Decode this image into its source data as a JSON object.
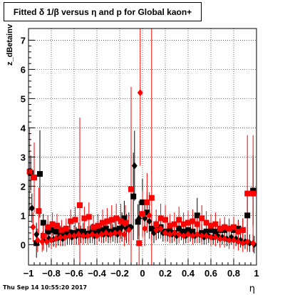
{
  "title": "Fitted δ 1/β versus η and p for Global kaon+",
  "footer_date": "Thu Sep 14 10:55:20 2017",
  "chart_data": {
    "type": "scatter",
    "title": "Fitted δ 1/β versus η and p for Global kaon+",
    "xlabel": "η",
    "ylabel": "z_dBetainv",
    "xlim": [
      -1,
      1
    ],
    "ylim": [
      -0.7,
      7.4
    ],
    "xticks": [
      -1,
      -0.8,
      -0.6,
      -0.4,
      -0.2,
      0,
      0.2,
      0.4,
      0.6,
      0.8,
      1
    ],
    "xtick_labels": [
      "−1",
      "−0.8",
      "−0.6",
      "−0.4",
      "−0.2",
      "0",
      "0.2",
      "0.4",
      "0.6",
      "0.8",
      "1"
    ],
    "yticks": [
      0,
      1,
      2,
      3,
      4,
      5,
      6,
      7
    ],
    "ytick_labels": [
      "0",
      "1",
      "2",
      "3",
      "4",
      "5",
      "6",
      "7"
    ],
    "grid": true,
    "colors": {
      "black": "#000000",
      "red": "#ff0000"
    },
    "series": [
      {
        "marker": "square",
        "color": "#000000",
        "points": [
          [
            -0.98,
            2.45,
            0.6
          ],
          [
            -0.93,
            0.05,
            0.5
          ],
          [
            -0.9,
            2.42,
            1.5
          ],
          [
            -0.87,
            0.75,
            0.3
          ],
          [
            -0.83,
            0.45,
            0.3
          ],
          [
            -0.8,
            0.5,
            0.25
          ],
          [
            -0.76,
            0.45,
            0.3
          ],
          [
            -0.72,
            0.4,
            0.25
          ],
          [
            -0.68,
            0.38,
            0.25
          ],
          [
            -0.64,
            0.42,
            0.3
          ],
          [
            -0.6,
            0.4,
            0.25
          ],
          [
            -0.56,
            0.45,
            0.3
          ],
          [
            -0.52,
            0.45,
            0.3
          ],
          [
            -0.48,
            0.38,
            0.25
          ],
          [
            -0.44,
            0.42,
            0.3
          ],
          [
            -0.4,
            0.45,
            0.3
          ],
          [
            -0.36,
            0.5,
            0.3
          ],
          [
            -0.32,
            0.55,
            0.35
          ],
          [
            -0.28,
            0.45,
            0.3
          ],
          [
            -0.24,
            0.5,
            0.35
          ],
          [
            -0.2,
            0.55,
            0.4
          ],
          [
            -0.16,
            0.9,
            0.6
          ],
          [
            -0.12,
            0.6,
            0.5
          ],
          [
            -0.08,
            1.65,
            1.5
          ],
          [
            -0.04,
            0.78,
            0.6
          ],
          [
            0.0,
            1.45,
            0.8
          ],
          [
            0.04,
            1.1,
            0.7
          ],
          [
            0.08,
            0.55,
            0.4
          ],
          [
            0.12,
            0.5,
            0.35
          ],
          [
            0.16,
            0.6,
            0.3
          ],
          [
            0.2,
            0.45,
            0.3
          ],
          [
            0.24,
            0.5,
            0.3
          ],
          [
            0.28,
            0.4,
            0.25
          ],
          [
            0.32,
            0.55,
            0.3
          ],
          [
            0.36,
            0.45,
            0.3
          ],
          [
            0.4,
            0.5,
            0.25
          ],
          [
            0.44,
            0.45,
            0.3
          ],
          [
            0.48,
            1.0,
            0.6
          ],
          [
            0.52,
            0.4,
            0.3
          ],
          [
            0.56,
            0.45,
            0.25
          ],
          [
            0.6,
            0.5,
            0.3
          ],
          [
            0.64,
            0.45,
            0.25
          ],
          [
            0.68,
            0.5,
            0.3
          ],
          [
            0.72,
            0.5,
            0.25
          ],
          [
            0.76,
            0.55,
            0.3
          ],
          [
            0.8,
            0.5,
            0.3
          ],
          [
            0.84,
            0.55,
            0.3
          ],
          [
            0.88,
            0.5,
            0.4
          ],
          [
            0.92,
            1.0,
            0.8
          ],
          [
            0.97,
            1.85,
            1.2
          ]
        ]
      },
      {
        "marker": "diamond",
        "color": "#000000",
        "points": [
          [
            -0.97,
            1.25,
            0.5
          ],
          [
            -0.93,
            0.35,
            0.4
          ],
          [
            -0.87,
            0.15,
            0.3
          ],
          [
            -0.82,
            0.2,
            0.3
          ],
          [
            -0.78,
            0.18,
            0.25
          ],
          [
            -0.74,
            0.22,
            0.25
          ],
          [
            -0.7,
            0.2,
            0.25
          ],
          [
            -0.66,
            0.3,
            0.3
          ],
          [
            -0.62,
            0.25,
            0.25
          ],
          [
            -0.58,
            0.3,
            0.3
          ],
          [
            -0.54,
            0.35,
            0.3
          ],
          [
            -0.5,
            0.3,
            0.25
          ],
          [
            -0.46,
            0.35,
            0.3
          ],
          [
            -0.42,
            0.3,
            0.3
          ],
          [
            -0.38,
            0.4,
            0.3
          ],
          [
            -0.34,
            0.35,
            0.3
          ],
          [
            -0.3,
            0.35,
            0.3
          ],
          [
            -0.26,
            0.4,
            0.3
          ],
          [
            -0.22,
            0.35,
            0.3
          ],
          [
            -0.18,
            0.6,
            0.5
          ],
          [
            -0.14,
            0.55,
            0.5
          ],
          [
            -0.1,
            0.6,
            0.5
          ],
          [
            -0.07,
            2.7,
            1.2
          ],
          [
            -0.03,
            0.9,
            0.6
          ],
          [
            0.02,
            0.9,
            0.6
          ],
          [
            0.06,
            0.8,
            0.6
          ],
          [
            0.1,
            0.4,
            0.35
          ],
          [
            0.14,
            0.5,
            0.3
          ],
          [
            0.18,
            0.4,
            0.3
          ],
          [
            0.22,
            0.4,
            0.3
          ],
          [
            0.26,
            0.35,
            0.3
          ],
          [
            0.3,
            0.3,
            0.3
          ],
          [
            0.34,
            0.4,
            0.25
          ],
          [
            0.38,
            0.3,
            0.25
          ],
          [
            0.42,
            0.4,
            0.3
          ],
          [
            0.46,
            0.3,
            0.25
          ],
          [
            0.5,
            0.35,
            0.3
          ],
          [
            0.54,
            0.25,
            0.25
          ],
          [
            0.58,
            0.3,
            0.25
          ],
          [
            0.62,
            0.25,
            0.25
          ],
          [
            0.66,
            0.3,
            0.25
          ],
          [
            0.7,
            0.25,
            0.25
          ],
          [
            0.74,
            0.2,
            0.25
          ],
          [
            0.78,
            0.25,
            0.25
          ],
          [
            0.82,
            0.2,
            0.25
          ],
          [
            0.86,
            0.15,
            0.25
          ],
          [
            0.9,
            0.1,
            0.25
          ],
          [
            0.94,
            0.05,
            0.3
          ],
          [
            0.98,
            0.0,
            0.3
          ]
        ]
      },
      {
        "marker": "square",
        "color": "#ff0000",
        "points": [
          [
            -0.99,
            2.5,
            1.5
          ],
          [
            -0.95,
            2.3,
            1.2
          ],
          [
            -0.91,
            1.15,
            0.8
          ],
          [
            -0.87,
            0.3,
            0.5
          ],
          [
            -0.83,
            0.6,
            0.4
          ],
          [
            -0.79,
            0.7,
            0.4
          ],
          [
            -0.75,
            0.65,
            0.4
          ],
          [
            -0.71,
            0.5,
            0.35
          ],
          [
            -0.67,
            0.55,
            0.35
          ],
          [
            -0.63,
            0.8,
            0.4
          ],
          [
            -0.59,
            0.85,
            0.45
          ],
          [
            -0.55,
            1.35,
            3.0
          ],
          [
            -0.51,
            0.9,
            0.4
          ],
          [
            -0.47,
            0.95,
            0.5
          ],
          [
            -0.43,
            0.6,
            0.4
          ],
          [
            -0.39,
            0.65,
            0.4
          ],
          [
            -0.35,
            0.75,
            0.45
          ],
          [
            -0.31,
            0.8,
            0.45
          ],
          [
            -0.27,
            0.85,
            0.5
          ],
          [
            -0.23,
            0.9,
            0.5
          ],
          [
            -0.19,
            0.8,
            0.6
          ],
          [
            -0.15,
            0.75,
            0.6
          ],
          [
            -0.1,
            1.9,
            3.5
          ],
          [
            -0.03,
            0.05,
            1.0
          ],
          [
            0.0,
            1.05,
            0.8
          ],
          [
            0.04,
            1.45,
            1.0
          ],
          [
            0.08,
            1.6,
            6.0
          ],
          [
            0.12,
            0.7,
            0.5
          ],
          [
            0.16,
            0.9,
            0.5
          ],
          [
            0.2,
            0.85,
            0.5
          ],
          [
            0.24,
            0.65,
            0.4
          ],
          [
            0.28,
            0.7,
            0.4
          ],
          [
            0.32,
            0.85,
            0.45
          ],
          [
            0.36,
            0.7,
            0.4
          ],
          [
            0.4,
            0.75,
            0.4
          ],
          [
            0.44,
            0.8,
            0.4
          ],
          [
            0.48,
            0.7,
            0.4
          ],
          [
            0.52,
            0.9,
            0.45
          ],
          [
            0.56,
            0.75,
            0.4
          ],
          [
            0.6,
            0.65,
            0.4
          ],
          [
            0.64,
            0.7,
            0.4
          ],
          [
            0.68,
            0.55,
            0.35
          ],
          [
            0.72,
            0.6,
            0.35
          ],
          [
            0.76,
            0.55,
            0.35
          ],
          [
            0.8,
            0.6,
            0.35
          ],
          [
            0.84,
            0.45,
            0.35
          ],
          [
            0.88,
            0.5,
            0.4
          ],
          [
            0.92,
            1.75,
            2.0
          ],
          [
            0.97,
            1.75,
            2.0
          ]
        ]
      },
      {
        "marker": "diamond",
        "color": "#ff0000",
        "points": [
          [
            -0.96,
            0.6,
            0.5
          ],
          [
            -0.92,
            0.15,
            0.4
          ],
          [
            -0.88,
            0.1,
            0.35
          ],
          [
            -0.84,
            0.1,
            0.35
          ],
          [
            -0.8,
            0.15,
            0.3
          ],
          [
            -0.76,
            0.2,
            0.3
          ],
          [
            -0.72,
            0.25,
            0.3
          ],
          [
            -0.68,
            0.25,
            0.3
          ],
          [
            -0.64,
            0.3,
            0.3
          ],
          [
            -0.6,
            0.3,
            0.3
          ],
          [
            -0.56,
            0.35,
            0.35
          ],
          [
            -0.52,
            0.3,
            0.3
          ],
          [
            -0.48,
            0.3,
            0.3
          ],
          [
            -0.44,
            0.35,
            0.3
          ],
          [
            -0.4,
            0.3,
            0.3
          ],
          [
            -0.36,
            0.35,
            0.3
          ],
          [
            -0.32,
            0.4,
            0.3
          ],
          [
            -0.28,
            0.35,
            0.3
          ],
          [
            -0.24,
            0.4,
            0.35
          ],
          [
            -0.2,
            0.4,
            0.35
          ],
          [
            -0.16,
            0.35,
            0.4
          ],
          [
            -0.12,
            0.5,
            0.5
          ],
          [
            -0.02,
            5.2,
            2.5
          ],
          [
            0.02,
            0.55,
            0.6
          ],
          [
            0.06,
            1.0,
            0.8
          ],
          [
            0.12,
            0.5,
            0.35
          ],
          [
            0.16,
            0.55,
            0.35
          ],
          [
            0.2,
            0.4,
            0.3
          ],
          [
            0.24,
            0.35,
            0.3
          ],
          [
            0.28,
            0.4,
            0.3
          ],
          [
            0.32,
            0.35,
            0.3
          ],
          [
            0.36,
            0.3,
            0.3
          ],
          [
            0.4,
            0.35,
            0.3
          ],
          [
            0.44,
            0.3,
            0.3
          ],
          [
            0.48,
            0.35,
            0.3
          ],
          [
            0.52,
            0.3,
            0.3
          ],
          [
            0.56,
            0.3,
            0.3
          ],
          [
            0.6,
            0.25,
            0.3
          ],
          [
            0.64,
            0.25,
            0.3
          ],
          [
            0.68,
            0.2,
            0.3
          ],
          [
            0.72,
            0.2,
            0.3
          ],
          [
            0.76,
            0.15,
            0.3
          ],
          [
            0.8,
            0.15,
            0.3
          ],
          [
            0.84,
            0.1,
            0.3
          ],
          [
            0.88,
            0.05,
            0.3
          ],
          [
            0.92,
            0.1,
            0.3
          ],
          [
            0.97,
            0.05,
            0.3
          ]
        ]
      }
    ]
  }
}
